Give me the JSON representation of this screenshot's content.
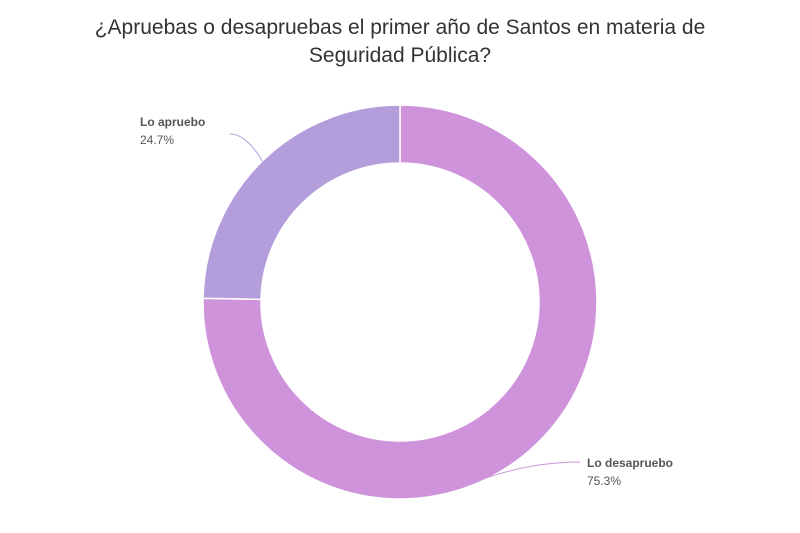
{
  "chart_data": {
    "type": "pie",
    "donut": true,
    "title_lines": [
      "¿Apruebas o desapruebas el primer año de Santos en materia de",
      "Seguridad Pública?"
    ],
    "slices": [
      {
        "label": "Lo desapruebo",
        "value": 75.3,
        "value_label": "75.3%",
        "color": "#cf93db"
      },
      {
        "label": "Lo apruebo",
        "value": 24.7,
        "value_label": "24.7%",
        "color": "#b39ddb"
      }
    ],
    "legend": "none"
  }
}
